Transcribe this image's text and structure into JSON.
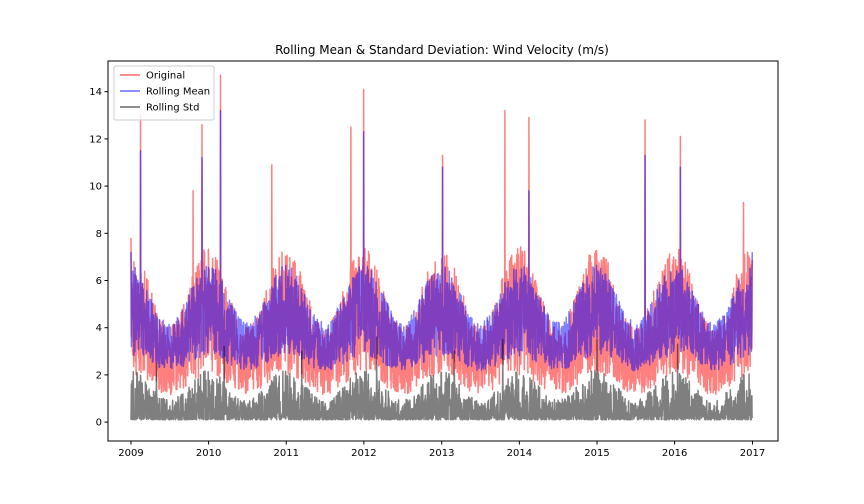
{
  "chart_data": {
    "type": "line",
    "title": "Rolling Mean & Standard Deviation: Wind Velocity (m/s)",
    "xlabel": "",
    "ylabel": "",
    "x_range": [
      "2008-09-15",
      "2017-05-01"
    ],
    "ylim": [
      -0.8,
      15.3
    ],
    "x_ticks": [
      "2009",
      "2010",
      "2011",
      "2012",
      "2013",
      "2014",
      "2015",
      "2016",
      "2017"
    ],
    "y_ticks": [
      0,
      2,
      4,
      6,
      8,
      10,
      12,
      14
    ],
    "grid": false,
    "legend_position": "top-left",
    "series": [
      {
        "name": "Original",
        "color": "#ff0000",
        "opacity": 0.5,
        "data_start": "2009-01-01",
        "data_end": "2016-12-31",
        "typical_band": [
          0.2,
          6.5
        ],
        "peaks": [
          {
            "date": "2009-01-01",
            "value": 7.8
          },
          {
            "date": "2009-02-15",
            "value": 13.0
          },
          {
            "date": "2009-10-20",
            "value": 9.8
          },
          {
            "date": "2009-12-01",
            "value": 12.6
          },
          {
            "date": "2010-02-26",
            "value": 14.7
          },
          {
            "date": "2010-10-25",
            "value": 10.9
          },
          {
            "date": "2011-11-01",
            "value": 12.5
          },
          {
            "date": "2011-12-31",
            "value": 14.1
          },
          {
            "date": "2013-01-05",
            "value": 11.3
          },
          {
            "date": "2013-10-25",
            "value": 13.2
          },
          {
            "date": "2014-02-15",
            "value": 12.9
          },
          {
            "date": "2015-08-15",
            "value": 12.8
          },
          {
            "date": "2016-01-28",
            "value": 12.1
          },
          {
            "date": "2016-11-20",
            "value": 9.3
          }
        ]
      },
      {
        "name": "Rolling Mean",
        "color": "#0000ff",
        "opacity": 0.5,
        "data_start": "2009-01-01",
        "data_end": "2016-12-31",
        "typical_band": [
          1.5,
          6.0
        ],
        "peaks": [
          {
            "date": "2009-01-01",
            "value": 7.2
          },
          {
            "date": "2009-02-15",
            "value": 11.5
          },
          {
            "date": "2009-12-01",
            "value": 11.2
          },
          {
            "date": "2010-02-26",
            "value": 13.2
          },
          {
            "date": "2011-12-31",
            "value": 12.3
          },
          {
            "date": "2013-01-05",
            "value": 10.8
          },
          {
            "date": "2014-02-15",
            "value": 9.8
          },
          {
            "date": "2015-08-15",
            "value": 11.3
          },
          {
            "date": "2016-01-28",
            "value": 10.8
          },
          {
            "date": "2016-12-31",
            "value": 7.2
          }
        ]
      },
      {
        "name": "Rolling Std",
        "color": "#000000",
        "opacity": 0.5,
        "data_start": "2009-01-01",
        "data_end": "2016-12-31",
        "typical_band": [
          0.1,
          1.5
        ],
        "peaks": [
          {
            "date": "2009-05-01",
            "value": 2.5
          },
          {
            "date": "2010-03-15",
            "value": 3.2
          },
          {
            "date": "2011-03-15",
            "value": 3.0
          },
          {
            "date": "2012-03-01",
            "value": 3.6
          },
          {
            "date": "2013-03-01",
            "value": 3.0
          },
          {
            "date": "2013-10-15",
            "value": 3.5
          },
          {
            "date": "2015-01-01",
            "value": 3.5
          },
          {
            "date": "2016-01-15",
            "value": 3.3
          }
        ]
      }
    ]
  }
}
